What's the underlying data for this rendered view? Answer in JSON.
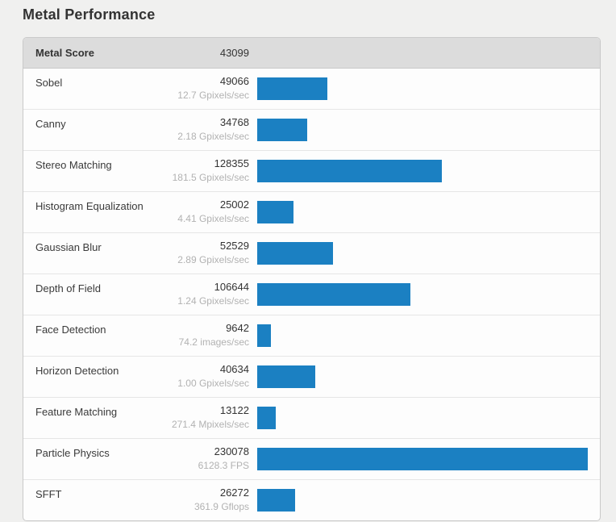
{
  "page": {
    "title": "Metal Performance",
    "background_color": "#f0f0ef"
  },
  "table": {
    "header": {
      "label": "Metal Score",
      "score": "43099"
    },
    "bar_color": "#1b80c2",
    "header_background": "#dcdcdc",
    "max_score": 230078,
    "rows": [
      {
        "label": "Sobel",
        "score": "49066",
        "value": 49066,
        "rate": "12.7 Gpixels/sec"
      },
      {
        "label": "Canny",
        "score": "34768",
        "value": 34768,
        "rate": "2.18 Gpixels/sec"
      },
      {
        "label": "Stereo Matching",
        "score": "128355",
        "value": 128355,
        "rate": "181.5 Gpixels/sec"
      },
      {
        "label": "Histogram Equalization",
        "score": "25002",
        "value": 25002,
        "rate": "4.41 Gpixels/sec"
      },
      {
        "label": "Gaussian Blur",
        "score": "52529",
        "value": 52529,
        "rate": "2.89 Gpixels/sec"
      },
      {
        "label": "Depth of Field",
        "score": "106644",
        "value": 106644,
        "rate": "1.24 Gpixels/sec"
      },
      {
        "label": "Face Detection",
        "score": "9642",
        "value": 9642,
        "rate": "74.2 images/sec"
      },
      {
        "label": "Horizon Detection",
        "score": "40634",
        "value": 40634,
        "rate": "1.00 Gpixels/sec"
      },
      {
        "label": "Feature Matching",
        "score": "13122",
        "value": 13122,
        "rate": "271.4 Mpixels/sec"
      },
      {
        "label": "Particle Physics",
        "score": "230078",
        "value": 230078,
        "rate": "6128.3 FPS"
      },
      {
        "label": "SFFT",
        "score": "26272",
        "value": 26272,
        "rate": "361.9 Gflops"
      }
    ]
  },
  "chart_data": {
    "type": "bar",
    "orientation": "horizontal",
    "title": "Metal Performance",
    "overall": {
      "label": "Metal Score",
      "value": 43099
    },
    "categories": [
      "Sobel",
      "Canny",
      "Stereo Matching",
      "Histogram Equalization",
      "Gaussian Blur",
      "Depth of Field",
      "Face Detection",
      "Horizon Detection",
      "Feature Matching",
      "Particle Physics",
      "SFFT"
    ],
    "values": [
      49066,
      34768,
      128355,
      25002,
      52529,
      106644,
      9642,
      40634,
      13122,
      230078,
      26272
    ],
    "rate_labels": [
      "12.7 Gpixels/sec",
      "2.18 Gpixels/sec",
      "181.5 Gpixels/sec",
      "4.41 Gpixels/sec",
      "2.89 Gpixels/sec",
      "1.24 Gpixels/sec",
      "74.2 images/sec",
      "1.00 Gpixels/sec",
      "271.4 Mpixels/sec",
      "6128.3 FPS",
      "361.9 Gflops"
    ],
    "xlabel": "",
    "ylabel": "",
    "xlim": [
      0,
      230078
    ],
    "grid": false,
    "legend": false,
    "bar_color": "#1b80c2"
  }
}
